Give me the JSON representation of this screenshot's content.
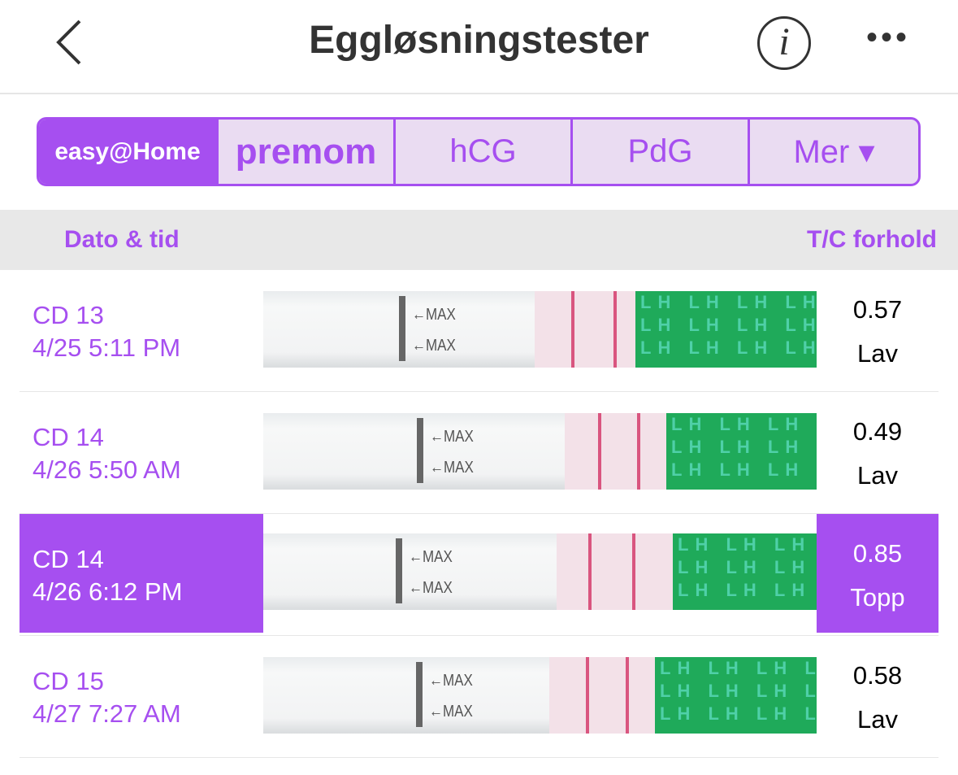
{
  "header": {
    "title": "Eggløsningstester",
    "back_icon": "chevron-left-icon",
    "info_icon": "info-icon",
    "more_icon": "more-horizontal-icon"
  },
  "tabs": [
    {
      "label": "easy@Home"
    },
    {
      "label": "premom"
    },
    {
      "label": "hCG"
    },
    {
      "label": "PdG"
    },
    {
      "label": "Mer ▾"
    }
  ],
  "columns": {
    "date": "Dato & tid",
    "ratio": "T/C forhold"
  },
  "strip_text": {
    "max": "←MAX",
    "lh": "LH LH LH LH\nLH LH LH LH\nLH LH LH LH"
  },
  "rows": [
    {
      "cycle_day": "CD 13",
      "datetime": "4/25 5:11 PM",
      "ratio": "0.57",
      "level": "Lav",
      "selected": false
    },
    {
      "cycle_day": "CD 14",
      "datetime": "4/26 5:50 AM",
      "ratio": "0.49",
      "level": "Lav",
      "selected": false
    },
    {
      "cycle_day": "CD 14",
      "datetime": "4/26 6:12 PM",
      "ratio": "0.85",
      "level": "Topp",
      "selected": true
    },
    {
      "cycle_day": "CD 15",
      "datetime": "4/27 7:27 AM",
      "ratio": "0.58",
      "level": "Lav",
      "selected": false
    }
  ],
  "colors": {
    "accent": "#a64ff0",
    "green": "#1faa5a",
    "test_line": "#d9557f"
  }
}
